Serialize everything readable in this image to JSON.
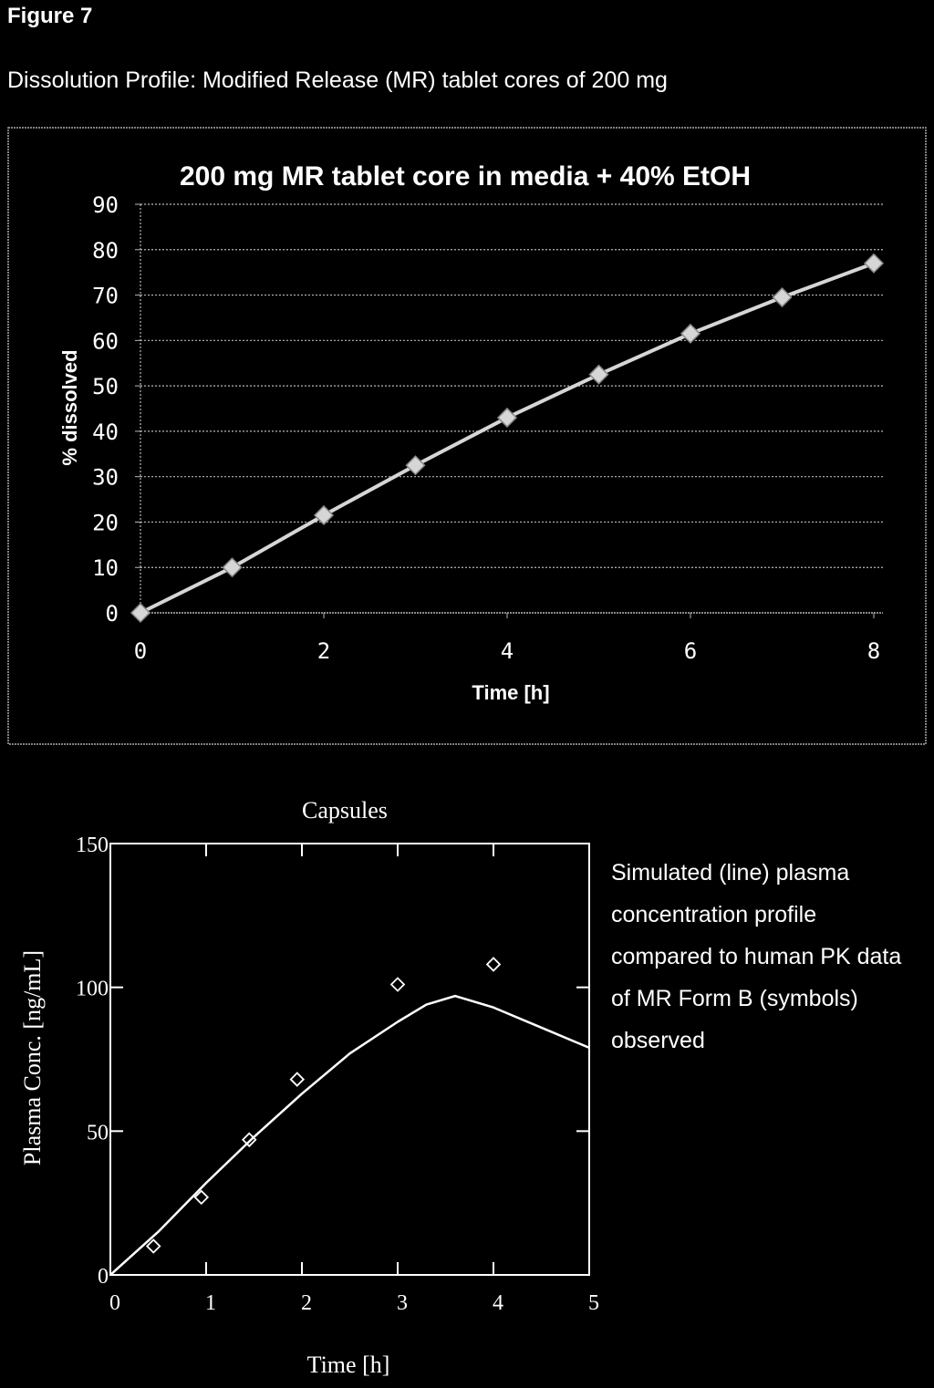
{
  "figure_label": "Figure 7",
  "figure_caption": "Dissolution Profile: Modified Release (MR) tablet cores of 200 mg",
  "side_note": "Simulated (line) plasma concentration profile compared to human PK data of MR Form B (symbols) observed",
  "chart_data": [
    {
      "type": "line",
      "title": "200 mg MR tablet core in media + 40% EtOH",
      "xlabel": "Time [h]",
      "ylabel": "% dissolved",
      "xlim": [
        0,
        8
      ],
      "ylim": [
        0,
        90
      ],
      "x_ticks": [
        0,
        2,
        4,
        6,
        8
      ],
      "y_ticks": [
        0,
        10,
        20,
        30,
        40,
        50,
        60,
        70,
        80,
        90
      ],
      "grid": true,
      "marker": "diamond",
      "series": [
        {
          "x": [
            0,
            1,
            2,
            3,
            4,
            5,
            6,
            7,
            8
          ],
          "values": [
            0,
            10,
            21.5,
            32.5,
            43,
            52.5,
            61.5,
            69.5,
            77
          ]
        }
      ],
      "colors": {
        "line": "#d6d6d6",
        "marker": "#d6d6d6",
        "grid": "#b8b8b8"
      }
    },
    {
      "type": "line",
      "title": "Capsules",
      "xlabel": "Time [h]",
      "ylabel": "Plasma Conc. [ng/mL]",
      "xlim": [
        0,
        5
      ],
      "ylim": [
        0,
        150
      ],
      "x_ticks": [
        0,
        1,
        2,
        3,
        4,
        5
      ],
      "y_ticks": [
        0,
        50,
        100,
        150
      ],
      "grid": false,
      "series": [
        {
          "style": "line",
          "x": [
            0,
            0.5,
            1,
            1.5,
            2,
            2.5,
            3,
            3.3,
            3.6,
            4,
            4.5,
            5
          ],
          "values": [
            0,
            15,
            32,
            48,
            63,
            77,
            88,
            94,
            97,
            93,
            86,
            79
          ]
        },
        {
          "style": "markers",
          "marker": "diamond-open",
          "x": [
            0.45,
            0.95,
            1.45,
            1.95,
            3.0,
            4.0
          ],
          "values": [
            10,
            27,
            47,
            68,
            101,
            108
          ]
        }
      ],
      "colors": {
        "line": "#ffffff",
        "marker": "#ffffff"
      }
    }
  ]
}
